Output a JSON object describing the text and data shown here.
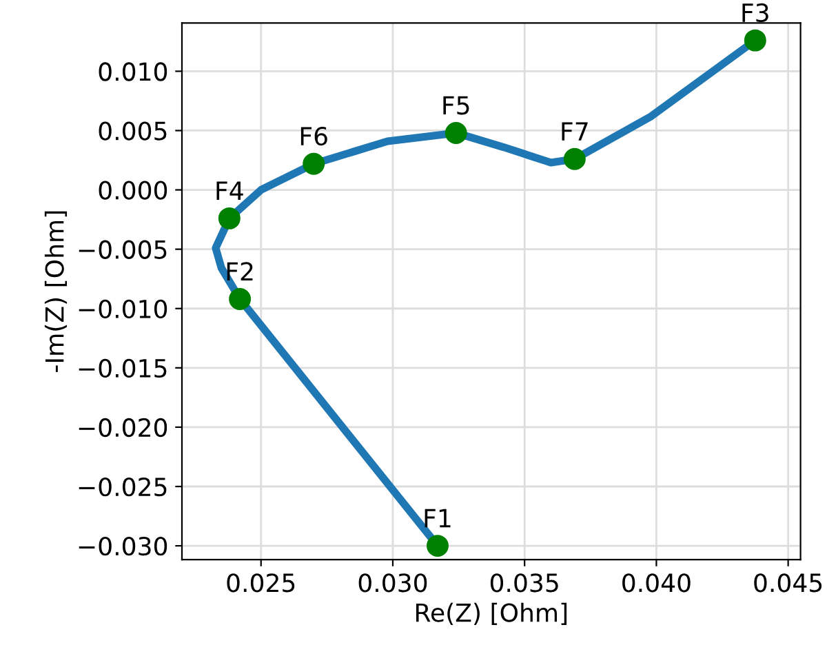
{
  "chart_data": {
    "type": "line",
    "xlabel": "Re(Z) [Ohm]",
    "ylabel": "-Im(Z) [Ohm]",
    "xlim": [
      0.022,
      0.04547
    ],
    "ylim": [
      -0.03116,
      0.01407
    ],
    "xticks": [
      {
        "value": 0.025,
        "label": "0.025"
      },
      {
        "value": 0.03,
        "label": "0.030"
      },
      {
        "value": 0.035,
        "label": "0.035"
      },
      {
        "value": 0.04,
        "label": "0.040"
      },
      {
        "value": 0.045,
        "label": "0.045"
      }
    ],
    "yticks": [
      {
        "value": -0.03,
        "label": "−0.030"
      },
      {
        "value": -0.025,
        "label": "−0.025"
      },
      {
        "value": -0.02,
        "label": "−0.020"
      },
      {
        "value": -0.015,
        "label": "−0.015"
      },
      {
        "value": -0.01,
        "label": "−0.010"
      },
      {
        "value": -0.005,
        "label": "−0.005"
      },
      {
        "value": 0,
        "label": "0.000"
      },
      {
        "value": 0.005,
        "label": "0.005"
      },
      {
        "value": 0.01,
        "label": "0.010"
      }
    ],
    "grid": true,
    "series": [
      {
        "color": "#1f77b4",
        "x": [
          0.0317,
          0.0242,
          0.0235,
          0.02328,
          0.0238,
          0.025,
          0.027,
          0.0298,
          0.0324,
          0.0342,
          0.036,
          0.0369,
          0.0398,
          0.04375
        ],
        "values": [
          -0.03,
          -0.0092,
          -0.0066,
          -0.0049,
          -0.0024,
          0.0,
          0.0022,
          0.0041,
          0.0048,
          0.0036,
          0.0023,
          0.0026,
          0.0062,
          0.0126
        ]
      },
      {
        "type": "scatter",
        "color": "#008000",
        "marker": "circle",
        "x": [
          0.0317,
          0.0242,
          0.04375,
          0.0238,
          0.0324,
          0.027,
          0.0369
        ],
        "values": [
          -0.03,
          -0.0092,
          0.0126,
          -0.0024,
          0.0048,
          0.0022,
          0.0026
        ]
      }
    ],
    "annotations": [
      {
        "text": "F1",
        "x": 0.0317,
        "y": -0.03
      },
      {
        "text": "F2",
        "x": 0.0242,
        "y": -0.0092
      },
      {
        "text": "F3",
        "x": 0.04375,
        "y": 0.0126
      },
      {
        "text": "F4",
        "x": 0.0238,
        "y": -0.0024
      },
      {
        "text": "F5",
        "x": 0.0324,
        "y": 0.0048
      },
      {
        "text": "F6",
        "x": 0.027,
        "y": 0.0022
      },
      {
        "text": "F7",
        "x": 0.0369,
        "y": 0.0026
      }
    ]
  }
}
